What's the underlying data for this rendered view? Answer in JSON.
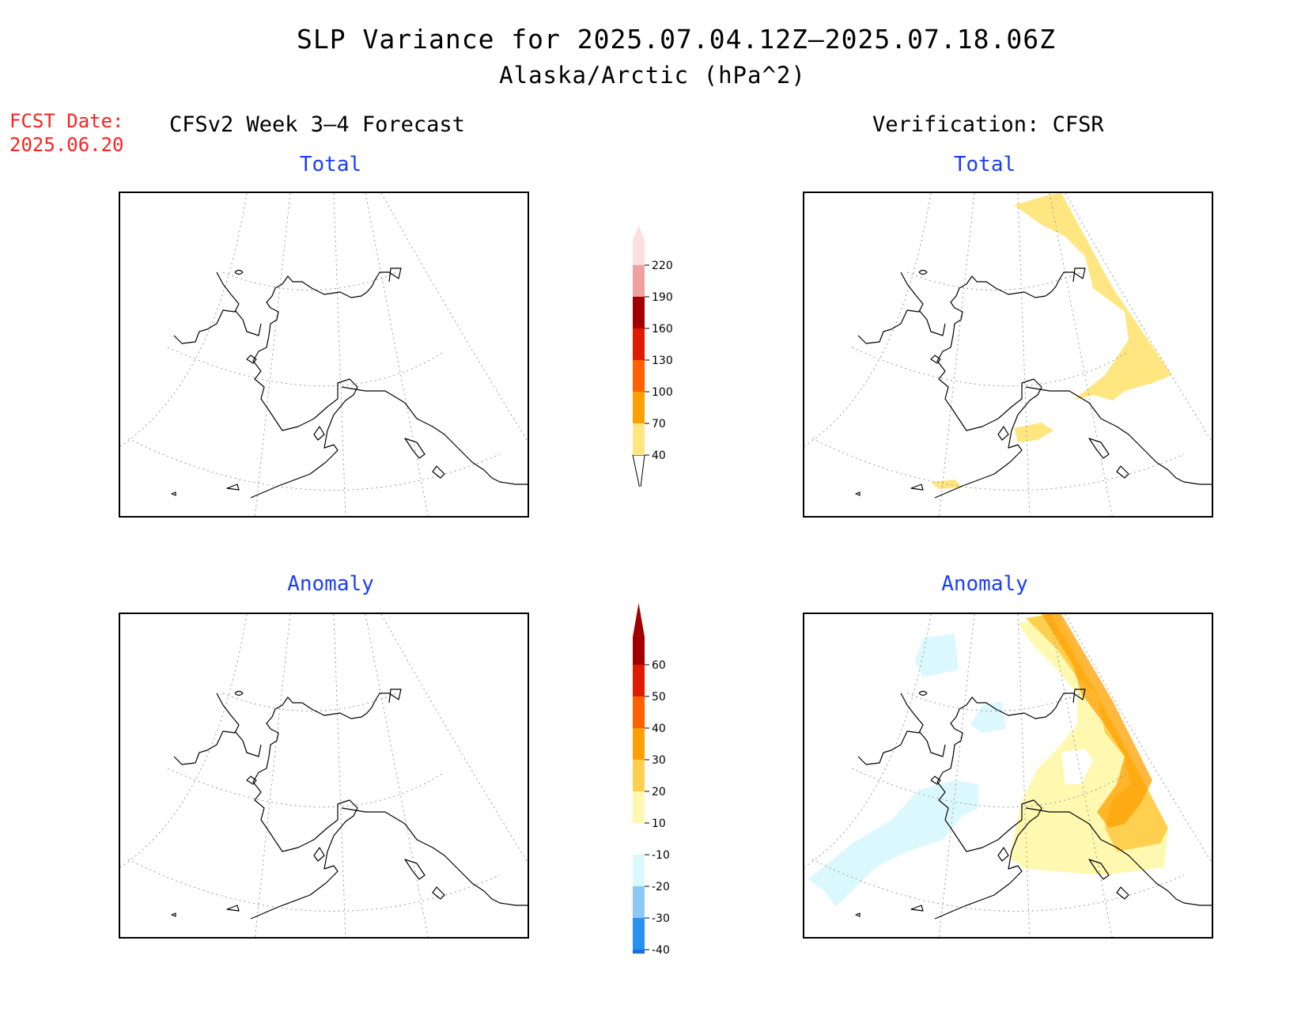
{
  "title": "SLP Variance for 2025.07.04.12Z–2025.07.18.06Z",
  "subtitle": "Alaska/Arctic (hPa^2)",
  "fcst_label_line1": "FCST Date:",
  "fcst_label_line2": "2025.06.20",
  "left_header": "CFSv2 Week 3–4 Forecast",
  "right_header": "Verification: CFSR",
  "panels": {
    "forecast_total_title": "Total",
    "forecast_anomaly_title": "Anomaly",
    "verif_total_title": "Total",
    "verif_anomaly_title": "Anomaly"
  },
  "colors": {
    "total_scale": [
      "#ffe680",
      "#ffa000",
      "#ff6000",
      "#e01a00",
      "#a00000",
      "#f0a0a0",
      "#fce0e0"
    ],
    "anomaly_scale": [
      "#1e6fd9",
      "#2890f0",
      "#8cc8f4",
      "#dcf8ff",
      "#ffffff",
      "#fff8b0",
      "#ffd050",
      "#ffa000",
      "#ff6000",
      "#e01a00",
      "#a00000"
    ]
  },
  "colorbar_total": {
    "labels": [
      "40",
      "70",
      "100",
      "130",
      "160",
      "190",
      "220"
    ]
  },
  "colorbar_anomaly": {
    "labels": [
      "-40",
      "-30",
      "-20",
      "-10",
      "10",
      "20",
      "30",
      "40",
      "50",
      "60"
    ]
  }
}
